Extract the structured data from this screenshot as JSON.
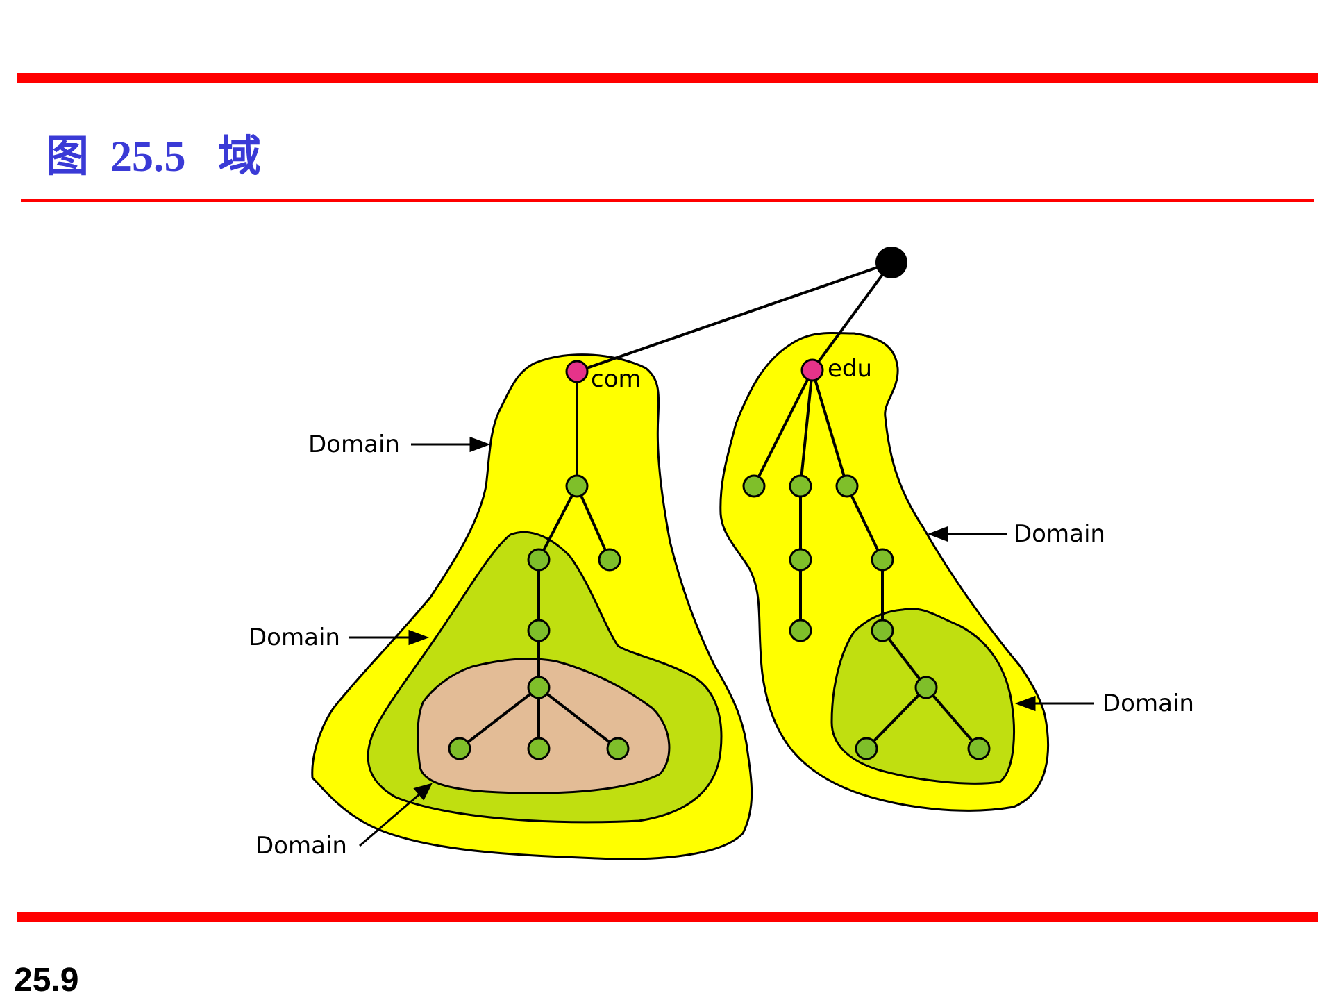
{
  "slide": {
    "title": "图  25.5   域",
    "page_number": "25.9"
  },
  "diagram": {
    "root_node": {
      "color": "#000000"
    },
    "tlds": [
      {
        "label": "com",
        "color": "#e6338a"
      },
      {
        "label": "edu",
        "color": "#e6338a"
      }
    ],
    "domain_labels": [
      "Domain",
      "Domain",
      "Domain",
      "Domain",
      "Domain"
    ],
    "colors": {
      "outer_domain": "#ffff00",
      "middle_domain": "#c0df10",
      "inner_domain": "#e3bc96",
      "node": "#7fbf2a",
      "rule": "#ff0000",
      "title": "#3a3ad6"
    }
  }
}
